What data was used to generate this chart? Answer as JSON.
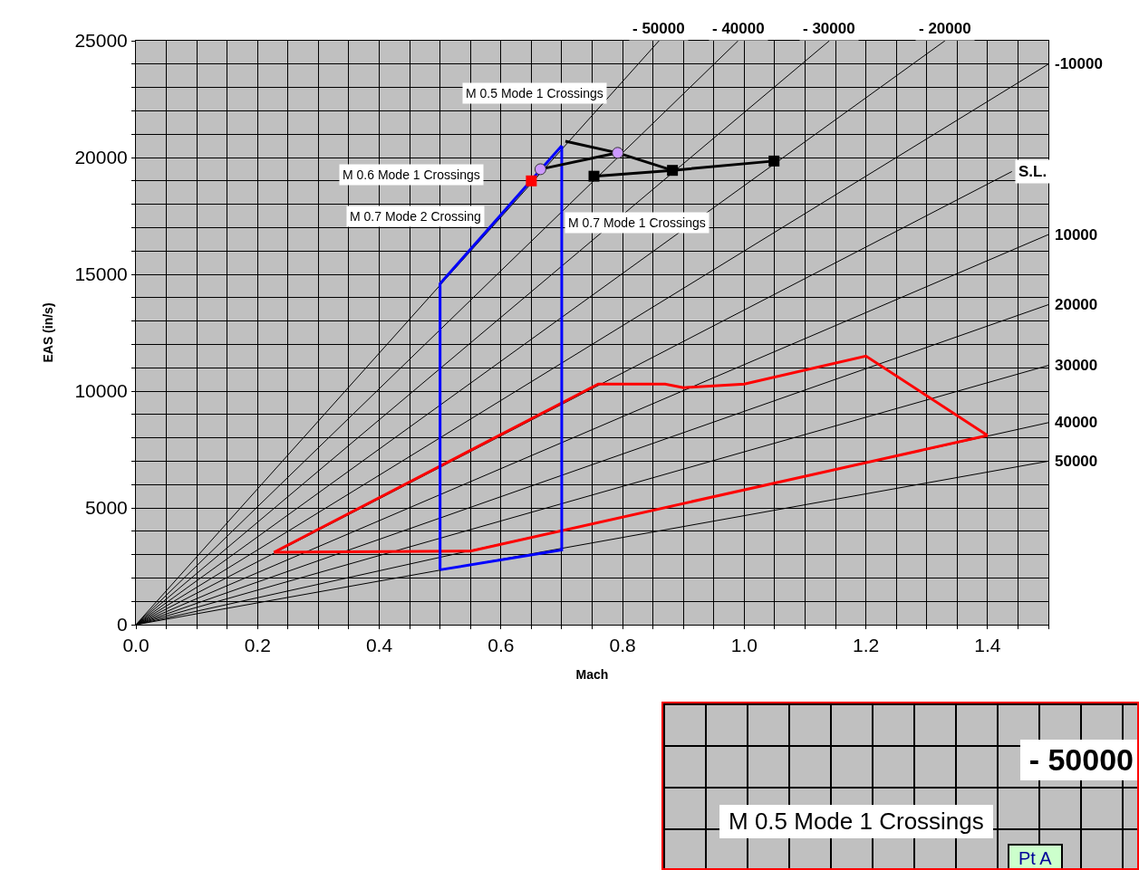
{
  "chart_data": [
    {
      "type": "line",
      "xlabel": "Mach",
      "ylabel": "EAS (in/s)",
      "xlim": [
        0,
        1.5
      ],
      "ylim": [
        0,
        25000
      ],
      "xticks": [
        {
          "value": 0,
          "label": "0.0"
        },
        {
          "value": 0.05,
          "label": null
        },
        {
          "value": 0.1,
          "label": null
        },
        {
          "value": 0.15,
          "label": null
        },
        0.2,
        {
          "value": 0.25,
          "label": null
        },
        {
          "value": 0.3,
          "label": null
        },
        {
          "value": 0.35,
          "label": null
        },
        0.4,
        {
          "value": 0.45,
          "label": null
        },
        {
          "value": 0.5,
          "label": null
        },
        {
          "value": 0.55,
          "label": null
        },
        0.6,
        {
          "value": 0.65,
          "label": null
        },
        {
          "value": 0.7,
          "label": null
        },
        {
          "value": 0.75,
          "label": null
        },
        0.8,
        {
          "value": 0.85,
          "label": null
        },
        {
          "value": 0.9,
          "label": null
        },
        {
          "value": 0.95,
          "label": null
        },
        {
          "value": 1,
          "label": "1.0"
        },
        {
          "value": 1.05,
          "label": null
        },
        {
          "value": 1.1,
          "label": null
        },
        {
          "value": 1.15,
          "label": null
        },
        1.2,
        {
          "value": 1.25,
          "label": null
        },
        {
          "value": 1.3,
          "label": null
        },
        {
          "value": 1.35,
          "label": null
        },
        1.4,
        {
          "value": 1.45,
          "label": null
        },
        {
          "value": 1.5,
          "label": null
        }
      ],
      "yticks": [
        0,
        {
          "value": 1000,
          "label": null
        },
        {
          "value": 2000,
          "label": null
        },
        {
          "value": 3000,
          "label": null
        },
        {
          "value": 4000,
          "label": null
        },
        5000,
        {
          "value": 6000,
          "label": null
        },
        {
          "value": 7000,
          "label": null
        },
        {
          "value": 8000,
          "label": null
        },
        {
          "value": 9000,
          "label": null
        },
        10000,
        {
          "value": 11000,
          "label": null
        },
        {
          "value": 12000,
          "label": null
        },
        {
          "value": 13000,
          "label": null
        },
        {
          "value": 14000,
          "label": null
        },
        15000,
        {
          "value": 16000,
          "label": null
        },
        {
          "value": 17000,
          "label": null
        },
        {
          "value": 18000,
          "label": null
        },
        {
          "value": 19000,
          "label": null
        },
        20000,
        {
          "value": 21000,
          "label": null
        },
        {
          "value": 22000,
          "label": null
        },
        {
          "value": 23000,
          "label": null
        },
        {
          "value": 24000,
          "label": null
        },
        25000
      ],
      "grid": true,
      "legend": false,
      "marker": "none",
      "line_style": "solid",
      "series": [
        {
          "name": "- 50000",
          "color": "#000000",
          "x": [
            0,
            0.86
          ],
          "values": [
            0,
            25000
          ]
        },
        {
          "name": "- 40000",
          "color": "#000000",
          "x": [
            0,
            0.99
          ],
          "values": [
            0,
            25000
          ]
        },
        {
          "name": "- 30000",
          "color": "#000000",
          "x": [
            0,
            1.14
          ],
          "values": [
            0,
            25000
          ]
        },
        {
          "name": "- 20000",
          "color": "#000000",
          "x": [
            0,
            1.33
          ],
          "values": [
            0,
            25000
          ]
        },
        {
          "name": "-10000",
          "color": "#000000",
          "x": [
            0,
            1.5
          ],
          "values": [
            0,
            24000
          ]
        },
        {
          "name": "S.L.",
          "color": "#000000",
          "x": [
            0,
            1.44
          ],
          "values": [
            0,
            19400
          ]
        },
        {
          "name": "10000",
          "color": "#000000",
          "x": [
            0,
            1.5
          ],
          "values": [
            0,
            16700
          ]
        },
        {
          "name": "20000",
          "color": "#000000",
          "x": [
            0,
            1.5
          ],
          "values": [
            0,
            13700
          ]
        },
        {
          "name": "30000",
          "color": "#000000",
          "x": [
            0,
            1.5
          ],
          "values": [
            0,
            11100
          ]
        },
        {
          "name": "40000",
          "color": "#000000",
          "x": [
            0,
            1.5
          ],
          "values": [
            0,
            8650
          ]
        },
        {
          "name": "50000",
          "color": "#000000",
          "x": [
            0,
            1.5
          ],
          "values": [
            0,
            7000
          ]
        },
        {
          "color": "#ff0000",
          "x": [
            0.227,
            0.76,
            0.87,
            0.9,
            1.0,
            1.2,
            1.4
          ],
          "values": [
            3100,
            10300,
            10300,
            10150,
            10300,
            11500,
            8100
          ]
        },
        {
          "color": "#ff0000",
          "x": [
            0.227,
            0.55,
            1.4
          ],
          "values": [
            3100,
            3150,
            8100
          ]
        },
        {
          "color": "#0000ff",
          "x": [
            0.5,
            0.5,
            0.7
          ],
          "values": [
            2350,
            14600,
            20500
          ]
        },
        {
          "color": "#0000ff",
          "x": [
            0.5,
            0.7,
            0.7
          ],
          "values": [
            2350,
            3200,
            20500
          ]
        },
        {
          "color": "#000000",
          "x": [
            0.706,
            0.792,
            0.882
          ],
          "values": [
            20700,
            20200,
            19450
          ]
        },
        {
          "color": "#000000",
          "x": [
            0.665,
            0.792
          ],
          "values": [
            19500,
            20200
          ]
        },
        {
          "color": "#000000",
          "x": [
            0.753,
            0.882,
            1.049
          ],
          "values": [
            19200,
            19450,
            19850
          ]
        },
        {
          "type": "scatter",
          "marker": "circle",
          "color": "#cc99ff",
          "x": [
            0.665,
            0.792
          ],
          "values": [
            19500,
            20200
          ]
        },
        {
          "type": "scatter",
          "marker": "square",
          "color": "#000000",
          "x": [
            0.753,
            0.882,
            1.049
          ],
          "values": [
            19200,
            19450,
            19850
          ]
        },
        {
          "type": "scatter",
          "marker": "square",
          "color": "#ff0000",
          "x": [
            0.65
          ],
          "values": [
            19000
          ]
        }
      ],
      "annotations": [
        "M 0.5 Mode 1 Crossings",
        "M 0.6 Mode 1 Crossings",
        "M 0.7 Mode 2 Crossing",
        "M 0.7 Mode 1 Crossings"
      ]
    },
    {
      "type": "other",
      "annotations": [
        "- 50000",
        "M 0.5 Mode 1 Crossings",
        "Pt A"
      ]
    }
  ]
}
